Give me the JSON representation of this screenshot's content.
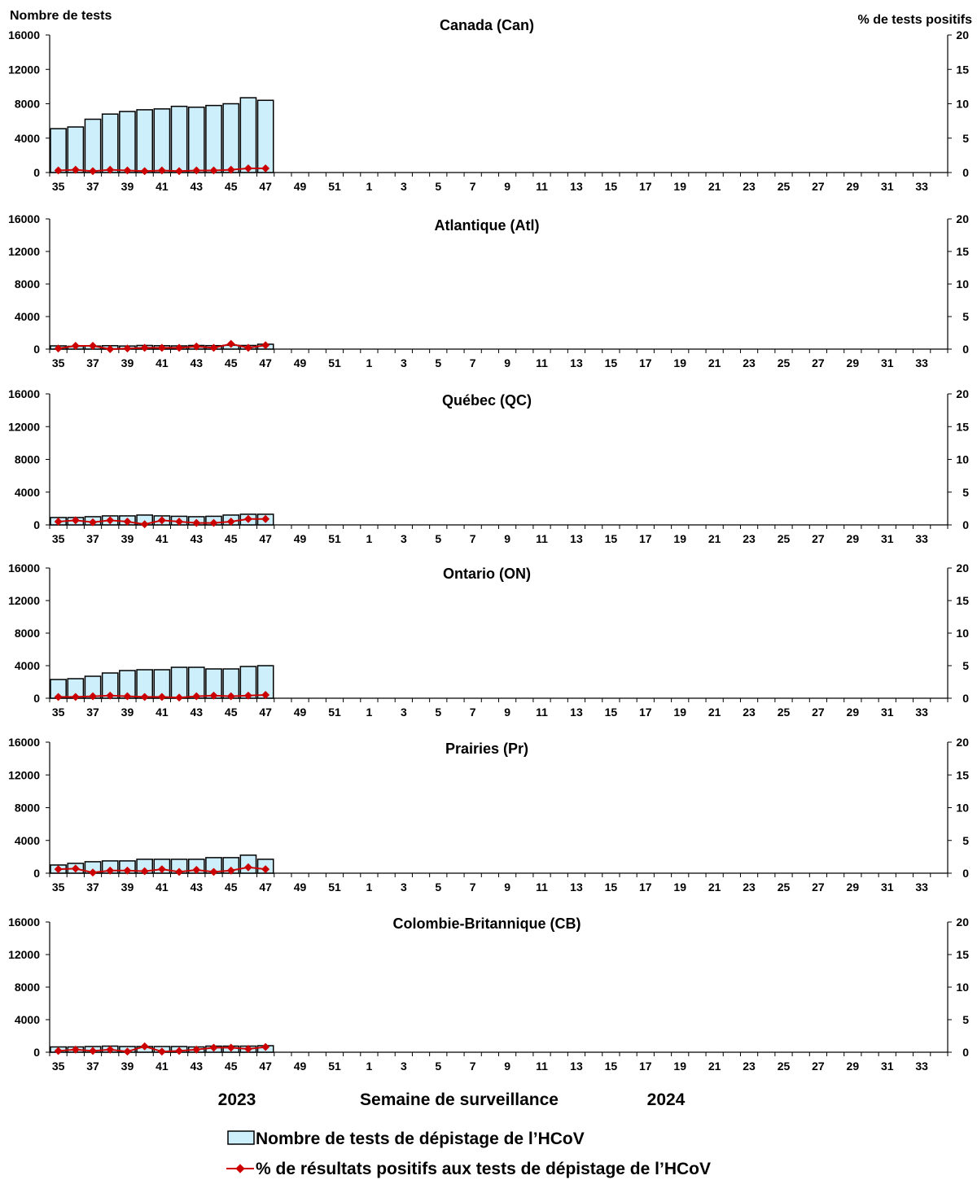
{
  "chart_data": {
    "type": "bar",
    "y_left_label": "Nombre de tests",
    "y_right_label": "% de tests positifs",
    "x_title": "Semaine de surveillance",
    "year_labels": [
      "2023",
      "2024"
    ],
    "weeks": [
      35,
      36,
      37,
      38,
      39,
      40,
      41,
      42,
      43,
      44,
      45,
      46,
      47,
      48,
      49,
      50,
      51,
      52,
      1,
      2,
      3,
      4,
      5,
      6,
      7,
      8,
      9,
      10,
      11,
      12,
      13,
      14,
      15,
      16,
      17,
      18,
      19,
      20,
      21,
      22,
      23,
      24,
      25,
      26,
      27,
      28,
      29,
      30,
      31,
      32,
      33,
      34
    ],
    "x_tick_labels": [
      "35",
      "37",
      "39",
      "41",
      "43",
      "45",
      "47",
      "49",
      "51",
      "1",
      "3",
      "5",
      "7",
      "9",
      "11",
      "13",
      "15",
      "17",
      "19",
      "21",
      "23",
      "25",
      "27",
      "29",
      "31",
      "33"
    ],
    "y_left_ticks": [
      "0",
      "4000",
      "8000",
      "12000",
      "16000"
    ],
    "y_left_range": [
      0,
      16000
    ],
    "y_right_ticks": [
      "0",
      "5",
      "10",
      "15",
      "20"
    ],
    "y_right_range": [
      0,
      20
    ],
    "bar_color": "#cdeefb",
    "line_color": "#cc0000",
    "legend": {
      "bar_label": "Nombre de tests de dépistage de l’HCoV",
      "line_label": "% de résultats positifs aux tests de dépistage de l’HCoV"
    },
    "panels": [
      {
        "title": "Canada (Can)",
        "tests": [
          5100,
          5300,
          6200,
          6800,
          7100,
          7300,
          7400,
          7700,
          7600,
          7800,
          8000,
          8700,
          8400
        ],
        "pct_positive": [
          0.3,
          0.4,
          0.2,
          0.4,
          0.3,
          0.2,
          0.3,
          0.2,
          0.3,
          0.3,
          0.4,
          0.6,
          0.6
        ]
      },
      {
        "title": "Atlantique (Atl)",
        "tests": [
          400,
          350,
          380,
          420,
          380,
          450,
          420,
          400,
          450,
          430,
          470,
          450,
          600
        ],
        "pct_positive": [
          0.1,
          0.5,
          0.5,
          0.0,
          0.1,
          0.2,
          0.2,
          0.2,
          0.4,
          0.2,
          0.8,
          0.2,
          0.6
        ]
      },
      {
        "title": "Québec (QC)",
        "tests": [
          900,
          900,
          1000,
          1100,
          1100,
          1200,
          1100,
          1050,
          1000,
          1050,
          1200,
          1300,
          1300
        ],
        "pct_positive": [
          0.5,
          0.7,
          0.4,
          0.7,
          0.5,
          0.1,
          0.7,
          0.5,
          0.3,
          0.3,
          0.5,
          0.9,
          0.9
        ]
      },
      {
        "title": "Ontario (ON)",
        "tests": [
          2300,
          2400,
          2700,
          3100,
          3400,
          3500,
          3500,
          3800,
          3800,
          3600,
          3600,
          3900,
          4000
        ],
        "pct_positive": [
          0.2,
          0.2,
          0.3,
          0.4,
          0.3,
          0.2,
          0.2,
          0.1,
          0.3,
          0.4,
          0.3,
          0.4,
          0.5
        ]
      },
      {
        "title": "Prairies (Pr)",
        "tests": [
          1000,
          1200,
          1400,
          1500,
          1500,
          1700,
          1700,
          1700,
          1700,
          1900,
          1900,
          2200,
          1700
        ],
        "pct_positive": [
          0.6,
          0.7,
          0.1,
          0.4,
          0.4,
          0.3,
          0.6,
          0.2,
          0.5,
          0.2,
          0.4,
          0.9,
          0.6
        ]
      },
      {
        "title": "Colombie-Britannique (CB)",
        "tests": [
          650,
          650,
          700,
          750,
          700,
          700,
          700,
          700,
          650,
          750,
          750,
          750,
          800
        ],
        "pct_positive": [
          0.2,
          0.4,
          0.2,
          0.4,
          0.1,
          0.9,
          0.1,
          0.2,
          0.4,
          0.7,
          0.7,
          0.5,
          0.8
        ]
      }
    ]
  }
}
